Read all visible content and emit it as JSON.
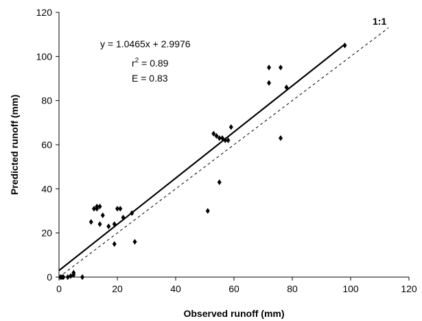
{
  "chart_data": {
    "type": "scatter",
    "xlabel": "Observed runoff (mm)",
    "ylabel": "Predicted runoff (mm)",
    "xlim": [
      0,
      120
    ],
    "ylim": [
      0,
      120
    ],
    "xticks": [
      0,
      20,
      40,
      60,
      80,
      100,
      120
    ],
    "yticks": [
      0,
      20,
      40,
      60,
      80,
      100,
      120
    ],
    "grid": false,
    "annotations": {
      "equation": "y = 1.0465x + 2.9976",
      "r2_prefix": "r",
      "r2_sup": "2",
      "r2_value": " = 0.89",
      "efficiency": "E = 0.83",
      "one_to_one": "1:1"
    },
    "regression": {
      "slope": 1.0465,
      "intercept": 2.9976,
      "x_range": [
        0,
        98
      ]
    },
    "reference_line": {
      "slope": 1,
      "intercept": 0,
      "x_range": [
        0,
        113
      ]
    },
    "points": [
      [
        0.5,
        0
      ],
      [
        1,
        0
      ],
      [
        1.5,
        0
      ],
      [
        3,
        0
      ],
      [
        4,
        0.5
      ],
      [
        5,
        1
      ],
      [
        5,
        2
      ],
      [
        8,
        0
      ],
      [
        11,
        25
      ],
      [
        12,
        31
      ],
      [
        13,
        31
      ],
      [
        13,
        32
      ],
      [
        14,
        32
      ],
      [
        14,
        24
      ],
      [
        15,
        28
      ],
      [
        17,
        23
      ],
      [
        19,
        24
      ],
      [
        19,
        15
      ],
      [
        20,
        31
      ],
      [
        21,
        31
      ],
      [
        22,
        27
      ],
      [
        25,
        29
      ],
      [
        26,
        16
      ],
      [
        51,
        30
      ],
      [
        53,
        65
      ],
      [
        54,
        64
      ],
      [
        55,
        43
      ],
      [
        55,
        63
      ],
      [
        56,
        63
      ],
      [
        57,
        62
      ],
      [
        58,
        62
      ],
      [
        59,
        68
      ],
      [
        72,
        88
      ],
      [
        72,
        95
      ],
      [
        76,
        95
      ],
      [
        76,
        63
      ],
      [
        78,
        86
      ],
      [
        98,
        105
      ]
    ]
  }
}
